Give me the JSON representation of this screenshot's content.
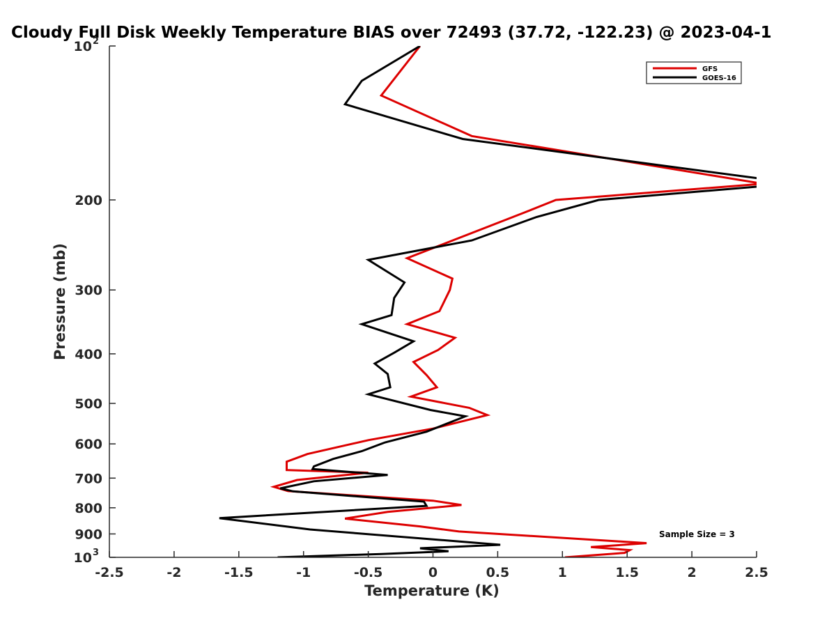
{
  "chart_data": {
    "type": "line",
    "title": "Cloudy Full Disk Weekly Temperature BIAS over 72493 (37.72, -122.23) @ 2023-04-1",
    "xlabel": "Temperature (K)",
    "ylabel": "Pressure (mb)",
    "xlim": [
      -2.5,
      2.5
    ],
    "ylim": [
      100,
      1000
    ],
    "yscale": "log",
    "y_reversed": true,
    "x_ticks": [
      "-2.5",
      "-2",
      "-1.5",
      "-1",
      "-0.5",
      "0",
      "0.5",
      "1",
      "1.5",
      "2",
      "2.5"
    ],
    "y_ticks": [
      {
        "value": 100,
        "base": "10",
        "exp": "2"
      },
      {
        "value": 200,
        "label": "200"
      },
      {
        "value": 300,
        "label": "300"
      },
      {
        "value": 400,
        "label": "400"
      },
      {
        "value": 500,
        "label": "500"
      },
      {
        "value": 600,
        "label": "600"
      },
      {
        "value": 700,
        "label": "700"
      },
      {
        "value": 800,
        "label": "800"
      },
      {
        "value": 900,
        "label": "900"
      },
      {
        "value": 1000,
        "base": "10",
        "exp": "3"
      }
    ],
    "legend_position": "top-right",
    "grid": false,
    "annotation": "Sample Size = 3",
    "series": [
      {
        "name": "GFS",
        "color": "#dd0000",
        "points": [
          [
            -0.1,
            100
          ],
          [
            -0.4,
            125
          ],
          [
            0.3,
            150
          ],
          [
            2.55,
            186
          ],
          [
            0.95,
            200
          ],
          [
            0.7,
            212
          ],
          [
            -0.2,
            260
          ],
          [
            0.15,
            285
          ],
          [
            0.13,
            300
          ],
          [
            0.05,
            330
          ],
          [
            -0.2,
            350
          ],
          [
            0.17,
            372
          ],
          [
            0.04,
            393
          ],
          [
            -0.15,
            415
          ],
          [
            -0.05,
            440
          ],
          [
            0.03,
            465
          ],
          [
            -0.17,
            485
          ],
          [
            0.28,
            510
          ],
          [
            0.42,
            527
          ],
          [
            0.0,
            560
          ],
          [
            -0.5,
            590
          ],
          [
            -0.97,
            628
          ],
          [
            -1.13,
            650
          ],
          [
            -1.13,
            675
          ],
          [
            -0.5,
            683
          ],
          [
            -1.05,
            706
          ],
          [
            -1.23,
            728
          ],
          [
            -1.12,
            742
          ],
          [
            0.0,
            775
          ],
          [
            0.22,
            790
          ],
          [
            -0.35,
            815
          ],
          [
            -0.68,
            840
          ],
          [
            -0.1,
            870
          ],
          [
            0.2,
            890
          ],
          [
            1.65,
            938
          ],
          [
            1.22,
            955
          ],
          [
            1.52,
            968
          ],
          [
            1.48,
            980
          ],
          [
            1.02,
            1000
          ]
        ]
      },
      {
        "name": "GOES-16",
        "color": "#000000",
        "points": [
          [
            -0.1,
            100
          ],
          [
            -0.55,
            117
          ],
          [
            -0.68,
            130
          ],
          [
            0.23,
            152
          ],
          [
            2.55,
            182
          ],
          [
            2.55,
            188
          ],
          [
            1.28,
            200
          ],
          [
            0.8,
            216
          ],
          [
            0.3,
            240
          ],
          [
            -0.5,
            262
          ],
          [
            -0.22,
            290
          ],
          [
            -0.3,
            311
          ],
          [
            -0.32,
            336
          ],
          [
            -0.55,
            350
          ],
          [
            -0.15,
            378
          ],
          [
            -0.3,
            398
          ],
          [
            -0.45,
            418
          ],
          [
            -0.35,
            438
          ],
          [
            -0.33,
            465
          ],
          [
            -0.5,
            480
          ],
          [
            -0.02,
            515
          ],
          [
            0.25,
            530
          ],
          [
            -0.05,
            568
          ],
          [
            -0.37,
            596
          ],
          [
            -0.55,
            620
          ],
          [
            -0.77,
            642
          ],
          [
            -0.92,
            664
          ],
          [
            -0.93,
            672
          ],
          [
            -0.35,
            690
          ],
          [
            -0.92,
            710
          ],
          [
            -1.18,
            733
          ],
          [
            -1.08,
            743
          ],
          [
            -0.07,
            778
          ],
          [
            -0.05,
            793
          ],
          [
            -1.65,
            838
          ],
          [
            -0.95,
            882
          ],
          [
            0.52,
            945
          ],
          [
            -0.1,
            960
          ],
          [
            0.12,
            973
          ],
          [
            -0.4,
            985
          ],
          [
            -1.2,
            1000
          ]
        ]
      }
    ]
  }
}
